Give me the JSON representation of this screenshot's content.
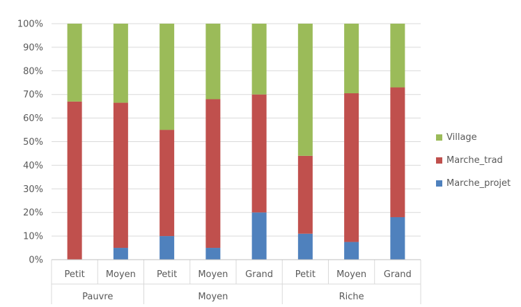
{
  "chart_data": {
    "type": "bar",
    "stacked": "percent",
    "groups": [
      {
        "label": "Pauvre",
        "categories": [
          "Petit",
          "Moyen"
        ]
      },
      {
        "label": "Moyen",
        "categories": [
          "Petit",
          "Moyen",
          "Grand"
        ]
      },
      {
        "label": "Riche",
        "categories": [
          "Petit",
          "Moyen",
          "Grand"
        ]
      }
    ],
    "categories": [
      "Petit",
      "Moyen",
      "Petit",
      "Moyen",
      "Grand",
      "Petit",
      "Moyen",
      "Grand"
    ],
    "series": [
      {
        "name": "Marche_projet",
        "color": "#4f81bd",
        "values": [
          0,
          5,
          10,
          5,
          20,
          11,
          7.5,
          18
        ]
      },
      {
        "name": "Marche_trad",
        "color": "#c0504d",
        "values": [
          67,
          61.5,
          45,
          63,
          50,
          33,
          63,
          55
        ]
      },
      {
        "name": "Village",
        "color": "#9bbb59",
        "values": [
          33,
          33.5,
          45,
          32,
          30,
          56,
          29.5,
          27
        ]
      }
    ],
    "ylim": [
      0,
      100
    ],
    "yticks": [
      "0%",
      "10%",
      "20%",
      "30%",
      "40%",
      "50%",
      "60%",
      "70%",
      "80%",
      "90%",
      "100%"
    ],
    "legend_order": [
      "Village",
      "Marche_trad",
      "Marche_projet"
    ],
    "legend_position": "right",
    "grid": true,
    "title": "",
    "xlabel": "",
    "ylabel": ""
  }
}
